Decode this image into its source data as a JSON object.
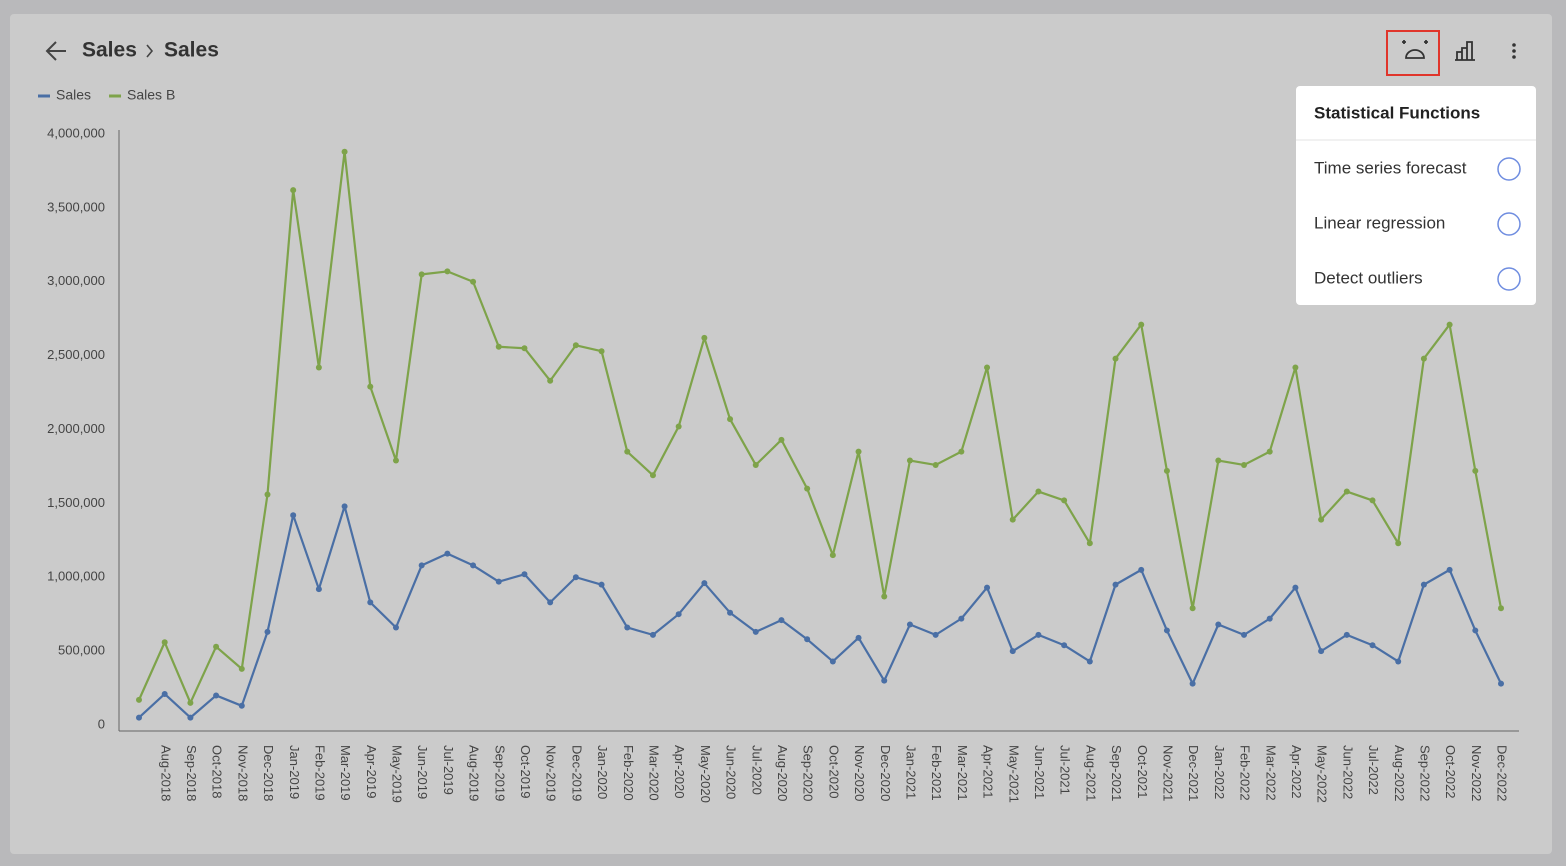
{
  "header": {
    "breadcrumb": [
      "Sales",
      "Sales"
    ]
  },
  "menu": {
    "title": "Statistical Functions",
    "items": [
      "Time series forecast",
      "Linear regression",
      "Detect outliers"
    ]
  },
  "chart_data": {
    "type": "line",
    "categories": [
      null,
      "Aug-2018",
      "Sep-2018",
      "Oct-2018",
      "Nov-2018",
      "Dec-2018",
      "Jan-2019",
      "Feb-2019",
      "Mar-2019",
      "Apr-2019",
      "May-2019",
      "Jun-2019",
      "Jul-2019",
      "Aug-2019",
      "Sep-2019",
      "Oct-2019",
      "Nov-2019",
      "Dec-2019",
      "Jan-2020",
      "Feb-2020",
      "Mar-2020",
      "Apr-2020",
      "May-2020",
      "Jun-2020",
      "Jul-2020",
      "Aug-2020",
      "Sep-2020",
      "Oct-2020",
      "Nov-2020",
      "Dec-2020",
      "Jan-2021",
      "Feb-2021",
      "Mar-2021",
      "Apr-2021",
      "May-2021",
      "Jun-2021",
      "Jul-2021",
      "Aug-2021",
      "Sep-2021",
      "Oct-2021",
      "Nov-2021",
      "Dec-2021",
      "Jan-2022",
      "Feb-2022",
      "Mar-2022",
      "Apr-2022",
      "May-2022",
      "Jun-2022",
      "Jul-2022",
      "Aug-2022",
      "Sep-2022",
      "Oct-2022",
      "Nov-2022",
      "Dec-2022"
    ],
    "series": [
      {
        "name": "Sales",
        "color": "#4a6fa5",
        "values": [
          50000,
          210000,
          50000,
          200000,
          130000,
          630000,
          1420000,
          920000,
          1480000,
          830000,
          660000,
          1080000,
          1160000,
          1080000,
          970000,
          1020000,
          830000,
          1000000,
          950000,
          660000,
          610000,
          750000,
          960000,
          760000,
          630000,
          710000,
          580000,
          430000,
          590000,
          300000,
          680000,
          610000,
          720000,
          930000,
          500000,
          610000,
          540000,
          430000,
          950000,
          1050000,
          640000,
          280000,
          680000,
          610000,
          720000,
          930000,
          500000,
          610000,
          540000,
          430000,
          950000,
          1050000,
          640000,
          280000
        ]
      },
      {
        "name": "Sales B",
        "color": "#7ea34a",
        "values": [
          170000,
          560000,
          150000,
          530000,
          380000,
          1560000,
          3620000,
          2420000,
          3880000,
          2290000,
          1790000,
          3050000,
          3070000,
          3000000,
          2560000,
          2550000,
          2330000,
          2570000,
          2530000,
          1850000,
          1690000,
          2020000,
          2620000,
          2070000,
          1760000,
          1930000,
          1600000,
          1150000,
          1850000,
          870000,
          1790000,
          1760000,
          1850000,
          2420000,
          1390000,
          1580000,
          1520000,
          1230000,
          2480000,
          2710000,
          1720000,
          790000,
          1790000,
          1760000,
          1850000,
          2420000,
          1390000,
          1580000,
          1520000,
          1230000,
          2480000,
          2710000,
          1720000,
          790000
        ]
      }
    ],
    "ylim": [
      0,
      4000000
    ],
    "yticks": [
      0,
      {
        "value": 500000,
        "label": "500,000"
      },
      {
        "value": 1000000,
        "label": "1,000,000"
      },
      {
        "value": 1500000,
        "label": "1,500,000"
      },
      {
        "value": 2000000,
        "label": "2,000,000"
      },
      {
        "value": 2500000,
        "label": "2,500,000"
      },
      {
        "value": 3000000,
        "label": "3,000,000"
      },
      {
        "value": 3500000,
        "label": "3,500,000"
      },
      {
        "value": 4000000,
        "label": "4,000,000"
      }
    ],
    "grid": false,
    "legend": "top-left"
  }
}
